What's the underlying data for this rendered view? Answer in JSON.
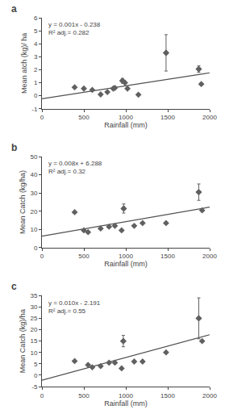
{
  "chart_data": [
    {
      "type": "scatter",
      "panel_label": "a",
      "xlabel": "Rainfall (mm)",
      "ylabel": "Mean atch (kg)/ ha",
      "annotations": [
        "y = 0.001x - 0.238",
        "R² adj.= 0.282"
      ],
      "xlim": [
        0,
        2000
      ],
      "xticks": [
        0,
        500,
        1000,
        1500,
        2000
      ],
      "ylim": [
        -1,
        6
      ],
      "yticks": [
        -1,
        0,
        1,
        2,
        3,
        4,
        5,
        6
      ],
      "grid": false,
      "series": [
        {
          "type": "line",
          "color": "#505050",
          "x": [
            0,
            2000
          ],
          "values": [
            -0.238,
            1.762
          ]
        },
        {
          "type": "scatter",
          "marker": "diamond",
          "color": "#606060",
          "x": [
            390,
            500,
            600,
            700,
            780,
            850,
            870,
            960,
            990,
            1020,
            1150,
            1480,
            1870,
            1900
          ],
          "values": [
            0.65,
            0.55,
            0.45,
            0.1,
            0.28,
            0.55,
            0.6,
            1.15,
            1.0,
            0.55,
            0.08,
            3.3,
            2.05,
            0.9
          ],
          "errors": [
            0.0,
            0.0,
            0.0,
            0.0,
            0.0,
            0.0,
            0.0,
            0.18,
            0.0,
            0.0,
            0.0,
            1.4,
            0.25,
            0.0
          ]
        }
      ]
    },
    {
      "type": "scatter",
      "panel_label": "b",
      "xlabel": "Rainfall (mm)",
      "ylabel": "Mean Catch (kg/ha)",
      "annotations": [
        "y = 0.008x + 6.288",
        "R² adj.= 0.32"
      ],
      "xlim": [
        0,
        2000
      ],
      "xticks": [
        0,
        500,
        1000,
        1500,
        2000
      ],
      "ylim": [
        0,
        50
      ],
      "yticks": [
        0,
        10,
        20,
        30,
        40,
        50
      ],
      "grid": false,
      "series": [
        {
          "type": "line",
          "color": "#505050",
          "x": [
            0,
            2000
          ],
          "values": [
            6.288,
            22.288
          ]
        },
        {
          "type": "scatter",
          "marker": "diamond",
          "color": "#606060",
          "x": [
            390,
            500,
            550,
            700,
            800,
            870,
            950,
            975,
            1100,
            1200,
            1480,
            1870,
            1910
          ],
          "values": [
            19.5,
            9.5,
            8.5,
            10.5,
            11.5,
            12.0,
            9.5,
            21.5,
            12.0,
            13.5,
            13.5,
            30.5,
            20.5
          ],
          "errors": [
            0.0,
            0.0,
            0.0,
            0.0,
            0.0,
            0.0,
            0.0,
            2.5,
            0.0,
            0.0,
            0.0,
            4.5,
            0.0
          ]
        }
      ]
    },
    {
      "type": "scatter",
      "panel_label": "c",
      "xlabel": "Rainfall (mm)",
      "ylabel": "Mean Catch (kg)/ha",
      "annotations": [
        "y = 0.010x - 2.191",
        "R² adj.= 0.55"
      ],
      "xlim": [
        0,
        2000
      ],
      "xticks": [
        0,
        500,
        1000,
        1500,
        2000
      ],
      "ylim": [
        -5,
        35
      ],
      "yticks": [
        -5,
        0,
        5,
        10,
        15,
        20,
        25,
        30,
        35
      ],
      "grid": false,
      "series": [
        {
          "type": "line",
          "color": "#505050",
          "x": [
            0,
            2000
          ],
          "values": [
            -2.191,
            17.809
          ]
        },
        {
          "type": "scatter",
          "marker": "diamond",
          "color": "#606060",
          "x": [
            390,
            550,
            600,
            700,
            800,
            870,
            950,
            970,
            1100,
            1200,
            1480,
            1870,
            1910
          ],
          "values": [
            6.2,
            4.5,
            3.5,
            4.0,
            5.5,
            5.5,
            3.0,
            15.0,
            6.0,
            6.0,
            10.0,
            25.0,
            15.0
          ],
          "errors": [
            0.0,
            0.0,
            0.0,
            0.0,
            0.0,
            0.0,
            0.0,
            2.5,
            0.0,
            0.0,
            0.0,
            9.0,
            0.0
          ]
        }
      ]
    }
  ]
}
